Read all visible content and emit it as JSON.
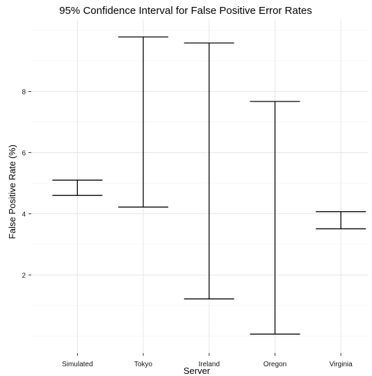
{
  "chart_data": {
    "type": "errorbar",
    "title": "95% Confidence Interval for False Positive Error Rates",
    "xlabel": "Server",
    "ylabel": "False Positive Rate (%)",
    "categories": [
      "Simulated",
      "Tokyo",
      "Ireland",
      "Oregon",
      "Virginia"
    ],
    "series": [
      {
        "lower": [
          4.6,
          4.22,
          1.22,
          0.07,
          3.51
        ],
        "upper": [
          5.1,
          9.78,
          9.58,
          7.67,
          4.07
        ]
      }
    ],
    "yticks": [
      2,
      4,
      6,
      8
    ],
    "ytick_labels": [
      "2",
      "4",
      "6",
      "8"
    ],
    "ylim": [
      -0.55,
      10.35
    ],
    "grid": true,
    "legend": "none"
  }
}
